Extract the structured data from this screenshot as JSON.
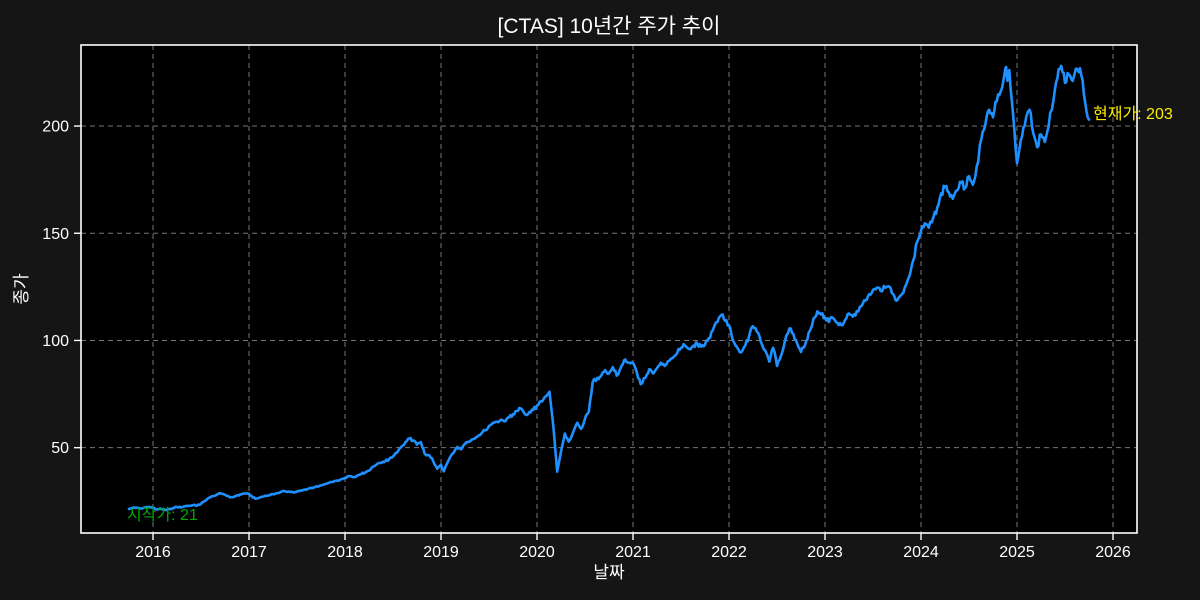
{
  "title": "[CTAS] 10년간 주가 추이",
  "colors": {
    "figure_background": "#151515",
    "plot_background": "#000000",
    "spine": "#ffffff",
    "grid": "#767676",
    "text": "#ffffff",
    "line": "#1e90ff",
    "start_annotation": "#00a800",
    "current_annotation": "#fdee00"
  },
  "chart_data": {
    "type": "line",
    "title": "[CTAS] 10년간 주가 추이",
    "xlabel": "날짜",
    "ylabel": "종가",
    "xlim": [
      2015.25,
      2026.25
    ],
    "ylim": [
      10.2,
      237.8
    ],
    "x_ticks": [
      2016,
      2017,
      2018,
      2019,
      2020,
      2021,
      2022,
      2023,
      2024,
      2025,
      2026
    ],
    "y_ticks": [
      50,
      100,
      150,
      200
    ],
    "grid": true,
    "grid_style": "dashed",
    "legend": "none",
    "annotations": {
      "start": {
        "text": "시작가: 21",
        "x": 2015.75,
        "y": 21,
        "color": "#00a800"
      },
      "current": {
        "text": "현재가: 203",
        "x": 2025.75,
        "y": 203,
        "color": "#fdee00"
      }
    },
    "series": [
      {
        "name": "CTAS",
        "color": "#1e90ff",
        "points": [
          [
            2015.75,
            21.4
          ],
          [
            2015.79,
            21.9
          ],
          [
            2015.83,
            22.0
          ],
          [
            2015.88,
            21.6
          ],
          [
            2015.92,
            22.2
          ],
          [
            2015.96,
            22.4
          ],
          [
            2016.0,
            21.9
          ],
          [
            2016.04,
            21.2
          ],
          [
            2016.08,
            21.6
          ],
          [
            2016.13,
            20.9
          ],
          [
            2016.17,
            21.3
          ],
          [
            2016.21,
            21.8
          ],
          [
            2016.25,
            22.3
          ],
          [
            2016.29,
            22.1
          ],
          [
            2016.33,
            22.6
          ],
          [
            2016.38,
            22.9
          ],
          [
            2016.42,
            23.2
          ],
          [
            2016.46,
            23.0
          ],
          [
            2016.5,
            23.8
          ],
          [
            2016.54,
            25.2
          ],
          [
            2016.58,
            26.6
          ],
          [
            2016.63,
            27.4
          ],
          [
            2016.67,
            28.2
          ],
          [
            2016.71,
            28.6
          ],
          [
            2016.75,
            28.0
          ],
          [
            2016.79,
            27.2
          ],
          [
            2016.83,
            26.9
          ],
          [
            2016.88,
            27.8
          ],
          [
            2016.92,
            28.2
          ],
          [
            2016.96,
            28.6
          ],
          [
            2017.0,
            28.4
          ],
          [
            2017.04,
            26.7
          ],
          [
            2017.08,
            26.3
          ],
          [
            2017.13,
            27.1
          ],
          [
            2017.17,
            27.6
          ],
          [
            2017.21,
            27.9
          ],
          [
            2017.25,
            28.3
          ],
          [
            2017.29,
            28.8
          ],
          [
            2017.33,
            29.3
          ],
          [
            2017.38,
            29.6
          ],
          [
            2017.42,
            29.4
          ],
          [
            2017.46,
            29.1
          ],
          [
            2017.5,
            29.6
          ],
          [
            2017.54,
            30.1
          ],
          [
            2017.58,
            30.5
          ],
          [
            2017.63,
            31.0
          ],
          [
            2017.67,
            31.4
          ],
          [
            2017.71,
            31.9
          ],
          [
            2017.75,
            32.4
          ],
          [
            2017.79,
            33.0
          ],
          [
            2017.83,
            33.5
          ],
          [
            2017.88,
            34.1
          ],
          [
            2017.92,
            34.7
          ],
          [
            2017.96,
            35.3
          ],
          [
            2018.0,
            36.0
          ],
          [
            2018.04,
            36.7
          ],
          [
            2018.08,
            36.2
          ],
          [
            2018.13,
            37.1
          ],
          [
            2018.17,
            37.7
          ],
          [
            2018.21,
            38.4
          ],
          [
            2018.25,
            39.3
          ],
          [
            2018.29,
            41.0
          ],
          [
            2018.33,
            42.2
          ],
          [
            2018.38,
            42.9
          ],
          [
            2018.42,
            43.7
          ],
          [
            2018.46,
            44.6
          ],
          [
            2018.5,
            45.9
          ],
          [
            2018.54,
            47.6
          ],
          [
            2018.58,
            50.1
          ],
          [
            2018.63,
            52.6
          ],
          [
            2018.67,
            54.3
          ],
          [
            2018.71,
            53.4
          ],
          [
            2018.75,
            51.4
          ],
          [
            2018.79,
            52.6
          ],
          [
            2018.83,
            47.2
          ],
          [
            2018.88,
            46.4
          ],
          [
            2018.92,
            43.6
          ],
          [
            2018.96,
            40.2
          ],
          [
            2019.0,
            42.0
          ],
          [
            2019.03,
            39.0
          ],
          [
            2019.08,
            44.2
          ],
          [
            2019.13,
            47.6
          ],
          [
            2019.17,
            50.3
          ],
          [
            2019.21,
            49.2
          ],
          [
            2019.25,
            51.8
          ],
          [
            2019.29,
            52.8
          ],
          [
            2019.33,
            53.9
          ],
          [
            2019.38,
            55.2
          ],
          [
            2019.42,
            56.6
          ],
          [
            2019.46,
            58.1
          ],
          [
            2019.5,
            60.1
          ],
          [
            2019.54,
            61.6
          ],
          [
            2019.58,
            62.1
          ],
          [
            2019.63,
            63.1
          ],
          [
            2019.67,
            62.3
          ],
          [
            2019.71,
            64.1
          ],
          [
            2019.75,
            65.6
          ],
          [
            2019.79,
            67.1
          ],
          [
            2019.83,
            68.3
          ],
          [
            2019.88,
            65.4
          ],
          [
            2019.92,
            66.6
          ],
          [
            2019.96,
            67.6
          ],
          [
            2020.0,
            69.6
          ],
          [
            2020.04,
            71.6
          ],
          [
            2020.08,
            73.6
          ],
          [
            2020.13,
            76.1
          ],
          [
            2020.17,
            60.0
          ],
          [
            2020.21,
            38.8
          ],
          [
            2020.25,
            48.2
          ],
          [
            2020.29,
            56.6
          ],
          [
            2020.33,
            52.8
          ],
          [
            2020.38,
            57.6
          ],
          [
            2020.42,
            61.6
          ],
          [
            2020.46,
            58.8
          ],
          [
            2020.5,
            63.6
          ],
          [
            2020.54,
            66.8
          ],
          [
            2020.58,
            80.6
          ],
          [
            2020.63,
            82.6
          ],
          [
            2020.67,
            83.6
          ],
          [
            2020.71,
            86.1
          ],
          [
            2020.75,
            84.6
          ],
          [
            2020.79,
            87.6
          ],
          [
            2020.83,
            83.6
          ],
          [
            2020.88,
            88.1
          ],
          [
            2020.92,
            91.1
          ],
          [
            2020.96,
            89.6
          ],
          [
            2021.0,
            89.6
          ],
          [
            2021.04,
            85.1
          ],
          [
            2021.08,
            79.6
          ],
          [
            2021.13,
            82.6
          ],
          [
            2021.17,
            86.6
          ],
          [
            2021.21,
            84.6
          ],
          [
            2021.25,
            87.1
          ],
          [
            2021.29,
            89.6
          ],
          [
            2021.33,
            88.1
          ],
          [
            2021.38,
            90.6
          ],
          [
            2021.42,
            92.1
          ],
          [
            2021.46,
            94.1
          ],
          [
            2021.5,
            96.6
          ],
          [
            2021.54,
            97.6
          ],
          [
            2021.58,
            96.1
          ],
          [
            2021.63,
            97.6
          ],
          [
            2021.67,
            98.6
          ],
          [
            2021.71,
            97.1
          ],
          [
            2021.75,
            98.1
          ],
          [
            2021.79,
            101.1
          ],
          [
            2021.83,
            104.6
          ],
          [
            2021.88,
            108.6
          ],
          [
            2021.92,
            111.9
          ],
          [
            2021.96,
            109.1
          ],
          [
            2022.0,
            107.1
          ],
          [
            2022.04,
            100.1
          ],
          [
            2022.08,
            97.1
          ],
          [
            2022.13,
            94.6
          ],
          [
            2022.17,
            97.6
          ],
          [
            2022.21,
            102.1
          ],
          [
            2022.25,
            106.6
          ],
          [
            2022.29,
            104.1
          ],
          [
            2022.33,
            99.6
          ],
          [
            2022.38,
            95.1
          ],
          [
            2022.42,
            90.1
          ],
          [
            2022.46,
            96.6
          ],
          [
            2022.5,
            88.1
          ],
          [
            2022.54,
            92.6
          ],
          [
            2022.58,
            99.1
          ],
          [
            2022.63,
            105.6
          ],
          [
            2022.67,
            103.1
          ],
          [
            2022.71,
            98.6
          ],
          [
            2022.75,
            94.6
          ],
          [
            2022.79,
            97.6
          ],
          [
            2022.83,
            103.6
          ],
          [
            2022.88,
            110.1
          ],
          [
            2022.92,
            113.6
          ],
          [
            2022.96,
            112.1
          ],
          [
            2023.0,
            110.6
          ],
          [
            2023.04,
            108.6
          ],
          [
            2023.08,
            110.6
          ],
          [
            2023.13,
            108.1
          ],
          [
            2023.17,
            107.1
          ],
          [
            2023.21,
            109.6
          ],
          [
            2023.25,
            112.6
          ],
          [
            2023.29,
            111.1
          ],
          [
            2023.33,
            113.6
          ],
          [
            2023.38,
            116.1
          ],
          [
            2023.42,
            118.6
          ],
          [
            2023.46,
            121.6
          ],
          [
            2023.5,
            123.6
          ],
          [
            2023.54,
            124.6
          ],
          [
            2023.58,
            123.1
          ],
          [
            2023.63,
            124.6
          ],
          [
            2023.67,
            125.1
          ],
          [
            2023.71,
            121.6
          ],
          [
            2023.75,
            118.6
          ],
          [
            2023.79,
            121.1
          ],
          [
            2023.83,
            124.6
          ],
          [
            2023.88,
            130.1
          ],
          [
            2023.92,
            137.6
          ],
          [
            2023.96,
            146.1
          ],
          [
            2024.0,
            151.1
          ],
          [
            2024.04,
            154.6
          ],
          [
            2024.08,
            152.6
          ],
          [
            2024.13,
            157.6
          ],
          [
            2024.17,
            162.1
          ],
          [
            2024.21,
            168.6
          ],
          [
            2024.25,
            171.6
          ],
          [
            2024.29,
            169.1
          ],
          [
            2024.33,
            166.1
          ],
          [
            2024.38,
            170.1
          ],
          [
            2024.42,
            173.6
          ],
          [
            2024.46,
            171.1
          ],
          [
            2024.5,
            176.6
          ],
          [
            2024.54,
            172.6
          ],
          [
            2024.58,
            181.1
          ],
          [
            2024.63,
            194.1
          ],
          [
            2024.67,
            200.6
          ],
          [
            2024.71,
            207.6
          ],
          [
            2024.75,
            204.1
          ],
          [
            2024.79,
            211.6
          ],
          [
            2024.83,
            216.1
          ],
          [
            2024.88,
            227.1
          ],
          [
            2024.9,
            221.1
          ],
          [
            2024.92,
            226.1
          ],
          [
            2024.96,
            205.1
          ],
          [
            2025.0,
            182.6
          ],
          [
            2025.04,
            193.6
          ],
          [
            2025.08,
            200.1
          ],
          [
            2025.13,
            207.6
          ],
          [
            2025.17,
            196.6
          ],
          [
            2025.21,
            190.1
          ],
          [
            2025.25,
            196.1
          ],
          [
            2025.29,
            192.6
          ],
          [
            2025.33,
            200.1
          ],
          [
            2025.38,
            212.1
          ],
          [
            2025.42,
            222.1
          ],
          [
            2025.46,
            228.1
          ],
          [
            2025.5,
            220.1
          ],
          [
            2025.54,
            224.1
          ],
          [
            2025.58,
            221.1
          ],
          [
            2025.63,
            226.6
          ],
          [
            2025.67,
            223.6
          ],
          [
            2025.71,
            211.1
          ],
          [
            2025.75,
            203.0
          ]
        ]
      }
    ]
  }
}
